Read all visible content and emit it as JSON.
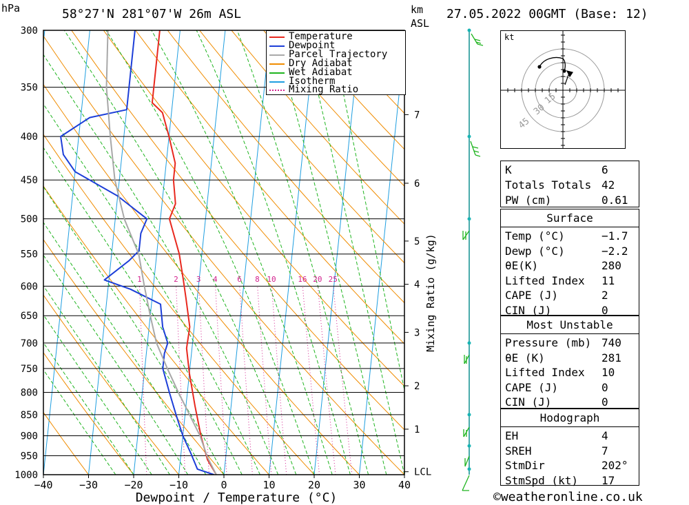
{
  "header": {
    "hpa_label": "hPa",
    "location": "58°27'N  281°07'W  26m  ASL",
    "km_label": "km",
    "asl_label": "ASL",
    "datetime": "27.05.2022  00GMT  (Base: 12)"
  },
  "chart_data": {
    "type": "line",
    "title": "58°27'N  281°07'W  26m  ASL",
    "xlabel": "Dewpoint / Temperature (°C)",
    "ylabel": "hPa",
    "right_label": "Mixing Ratio (g/kg)",
    "xlim": [
      -40,
      40
    ],
    "ylim": [
      1000,
      300
    ],
    "y_scale": "log",
    "x_ticks": [
      -40,
      -30,
      -20,
      -10,
      0,
      10,
      20,
      30,
      40
    ],
    "x_tick_labels": [
      "−40",
      "−30",
      "−20",
      "−10",
      "0",
      "10",
      "20",
      "30",
      "40"
    ],
    "pressure_levels": [
      300,
      350,
      400,
      450,
      500,
      550,
      600,
      650,
      700,
      750,
      800,
      850,
      900,
      950,
      1000
    ],
    "km_ticks": [
      {
        "label": "7",
        "p": 377
      },
      {
        "label": "6",
        "p": 454
      },
      {
        "label": "5",
        "p": 531
      },
      {
        "label": "4",
        "p": 597
      },
      {
        "label": "3",
        "p": 680
      },
      {
        "label": "2",
        "p": 786
      },
      {
        "label": "1",
        "p": 884
      },
      {
        "label": "LCL",
        "p": 992
      }
    ],
    "mixing_ratio_values": [
      1,
      2,
      3,
      4,
      6,
      8,
      10,
      16,
      20,
      25
    ],
    "mixing_ratio_labels": [
      "1",
      "2",
      "3",
      "4",
      "6",
      "8",
      "10",
      "16",
      "20",
      "25"
    ],
    "mixing_ratio_label_p": 595,
    "legend": {
      "position": "top-center",
      "items": [
        {
          "name": "Temperature",
          "color": "#e8281e",
          "style": "solid"
        },
        {
          "name": "Dewpoint",
          "color": "#1c3ed8",
          "style": "solid"
        },
        {
          "name": "Parcel Trajectory",
          "color": "#a8a8a8",
          "style": "solid"
        },
        {
          "name": "Dry Adiabat",
          "color": "#f08c00",
          "style": "solid"
        },
        {
          "name": "Wet Adiabat",
          "color": "#1eb41e",
          "style": "solid"
        },
        {
          "name": "Isotherm",
          "color": "#1e9ee0",
          "style": "solid"
        },
        {
          "name": "Mixing Ratio",
          "color": "#d21e8c",
          "style": "dotted"
        }
      ]
    },
    "series": [
      {
        "name": "Temperature",
        "color": "#e8281e",
        "points": [
          [
            -1.7,
            1000
          ],
          [
            -4,
            960
          ],
          [
            -6,
            900
          ],
          [
            -8,
            830
          ],
          [
            -10,
            760
          ],
          [
            -11.2,
            710
          ],
          [
            -11,
            670
          ],
          [
            -12.5,
            620
          ],
          [
            -13.5,
            590
          ],
          [
            -15,
            550
          ],
          [
            -18,
            500
          ],
          [
            -17,
            480
          ],
          [
            -18,
            450
          ],
          [
            -18,
            430
          ],
          [
            -20,
            400
          ],
          [
            -22,
            375
          ],
          [
            -24.5,
            365
          ],
          [
            -24.5,
            300
          ]
        ]
      },
      {
        "name": "Dewpoint",
        "color": "#1c3ed8",
        "points": [
          [
            -2.2,
            1000
          ],
          [
            -6,
            985
          ],
          [
            -8,
            940
          ],
          [
            -10,
            900
          ],
          [
            -12,
            850
          ],
          [
            -14,
            800
          ],
          [
            -16,
            750
          ],
          [
            -16,
            720
          ],
          [
            -15.5,
            700
          ],
          [
            -17,
            670
          ],
          [
            -18,
            630
          ],
          [
            -25,
            605
          ],
          [
            -31,
            590
          ],
          [
            -26,
            560
          ],
          [
            -24,
            545
          ],
          [
            -24,
            520
          ],
          [
            -23,
            500
          ],
          [
            -30,
            470
          ],
          [
            -40,
            440
          ],
          [
            -43,
            420
          ],
          [
            -44,
            400
          ],
          [
            -38,
            380
          ],
          [
            -30,
            372
          ],
          [
            -30,
            300
          ]
        ]
      },
      {
        "name": "Parcel Trajectory",
        "color": "#a8a8a8",
        "points": [
          [
            -1.7,
            1000
          ],
          [
            -4,
            955
          ],
          [
            -6.2,
            900
          ],
          [
            -9,
            850
          ],
          [
            -12,
            800
          ],
          [
            -15,
            750
          ],
          [
            -18,
            700
          ],
          [
            -20,
            650
          ],
          [
            -22,
            600
          ],
          [
            -24,
            550
          ],
          [
            -28,
            500
          ],
          [
            -31,
            450
          ],
          [
            -33,
            400
          ],
          [
            -35,
            350
          ],
          [
            -36,
            300
          ]
        ]
      }
    ]
  },
  "hodograph": {
    "unit_label": "kt",
    "ring_labels": [
      "15",
      "30",
      "45"
    ]
  },
  "indices": {
    "k_label": "K",
    "k_value": "6",
    "tt_label": "Totals Totals",
    "tt_value": "42",
    "pw_label": "PW (cm)",
    "pw_value": "0.61"
  },
  "surface": {
    "title": "Surface",
    "rows": [
      {
        "label": "Temp (°C)",
        "value": "−1.7"
      },
      {
        "label": "Dewp (°C)",
        "value": "−2.2"
      },
      {
        "label": "θE(K)",
        "value": "280"
      },
      {
        "label": "Lifted Index",
        "value": "11"
      },
      {
        "label": "CAPE (J)",
        "value": "2"
      },
      {
        "label": "CIN (J)",
        "value": "0"
      }
    ]
  },
  "most_unstable": {
    "title": "Most Unstable",
    "rows": [
      {
        "label": "Pressure (mb)",
        "value": "740"
      },
      {
        "label": "θE (K)",
        "value": "281"
      },
      {
        "label": "Lifted Index",
        "value": "10"
      },
      {
        "label": "CAPE (J)",
        "value": "0"
      },
      {
        "label": "CIN (J)",
        "value": "0"
      }
    ]
  },
  "hodo_stats": {
    "title": "Hodograph",
    "rows": [
      {
        "label": "EH",
        "value": "4"
      },
      {
        "label": "SREH",
        "value": "7"
      },
      {
        "label": "StmDir",
        "value": "202°"
      },
      {
        "label": "StmSpd (kt)",
        "value": "17"
      }
    ]
  },
  "footer": {
    "copyright": "©weatheronline.co.uk"
  }
}
